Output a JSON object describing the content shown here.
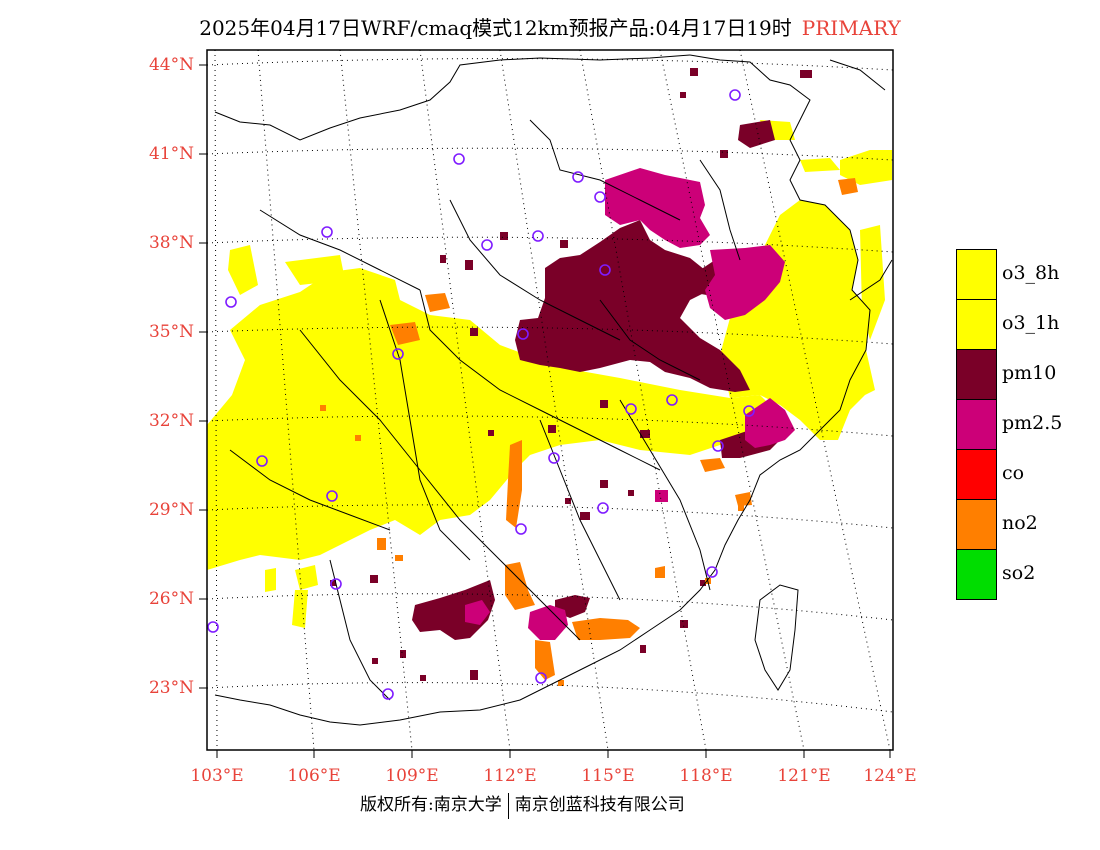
{
  "title": {
    "main": "2025年04月17日WRF/cmaq模式12km预报产品:04月17日19时",
    "tag": "PRIMARY"
  },
  "axes": {
    "lat_labels": [
      "44°N",
      "41°N",
      "38°N",
      "35°N",
      "32°N",
      "29°N",
      "26°N",
      "23°N"
    ],
    "lon_labels": [
      "103°E",
      "106°E",
      "109°E",
      "112°E",
      "115°E",
      "118°E",
      "121°E",
      "124°E"
    ]
  },
  "legend": [
    {
      "label": "o3_8h",
      "color": "#ffff00"
    },
    {
      "label": "o3_1h",
      "color": "#ffff00"
    },
    {
      "label": "pm10",
      "color": "#7a0028"
    },
    {
      "label": "pm2.5",
      "color": "#cc0078"
    },
    {
      "label": "co",
      "color": "#ff0000"
    },
    {
      "label": "no2",
      "color": "#ff7f00"
    },
    {
      "label": "so2",
      "color": "#00dd00"
    }
  ],
  "colors": {
    "title_accent": "#e8433a",
    "station_marker": "#7f1cff",
    "grid": "#000000"
  },
  "footer": {
    "left": "版权所有:南京大学",
    "right": "南京创蓝科技有限公司"
  }
}
